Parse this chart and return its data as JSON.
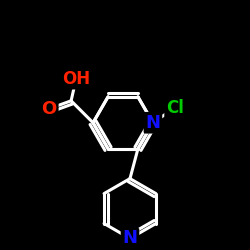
{
  "background_color": "#000000",
  "atom_colors": {
    "C": "#ffffff",
    "N": "#1111ff",
    "O": "#ff2200",
    "Cl": "#00cc00",
    "H": "#ffffff"
  },
  "bond_color": "#ffffff",
  "bond_width": 2.2,
  "font_size_atom": 13,
  "font_size_label": 10
}
